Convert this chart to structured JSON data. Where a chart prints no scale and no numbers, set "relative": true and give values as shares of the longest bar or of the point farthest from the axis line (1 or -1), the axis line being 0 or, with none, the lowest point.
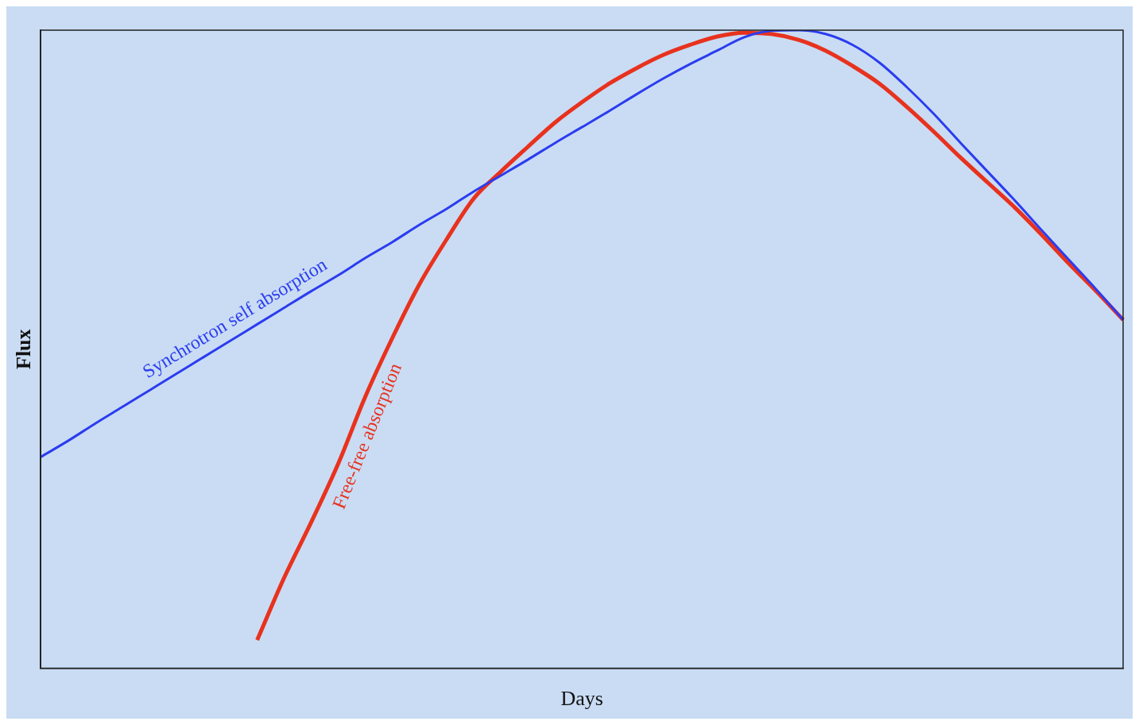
{
  "chart_data": {
    "type": "line",
    "relative": true,
    "xlabel": "Days",
    "ylabel": "Flux",
    "legend": false,
    "grid": false,
    "marker": "none",
    "line_style": "solid",
    "categories": [
      null,
      null,
      null,
      null,
      null,
      null,
      null,
      null,
      null,
      null,
      null,
      null,
      null,
      null,
      null,
      null,
      null,
      null,
      null,
      null,
      null,
      null,
      null,
      null,
      null,
      null,
      null,
      null,
      null,
      null,
      null,
      null,
      null,
      null,
      null,
      null,
      null,
      null,
      null,
      null,
      null
    ],
    "series": [
      {
        "name": "Synchrotron self absorption",
        "color": "#2b3cf0",
        "values": [
          0.331,
          0.356,
          0.383,
          0.409,
          0.435,
          0.461,
          0.487,
          0.513,
          0.539,
          0.565,
          0.591,
          0.616,
          0.643,
          0.668,
          0.695,
          0.72,
          0.747,
          0.772,
          0.797,
          0.823,
          0.848,
          0.873,
          0.899,
          0.924,
          0.947,
          0.968,
          0.989,
          0.999,
          1.0,
          0.994,
          0.977,
          0.949,
          0.911,
          0.869,
          0.823,
          0.778,
          0.733,
          0.686,
          0.64,
          0.594,
          0.546
        ]
      },
      {
        "name": "Free-free absorption",
        "color": "#e8321e",
        "values": [
          null,
          null,
          null,
          null,
          null,
          null,
          null,
          null,
          0.044,
          0.142,
          0.229,
          0.321,
          0.426,
          0.518,
          0.602,
          0.672,
          0.736,
          0.778,
          0.817,
          0.855,
          0.887,
          0.916,
          0.94,
          0.961,
          0.977,
          0.99,
          0.996,
          0.994,
          0.985,
          0.968,
          0.944,
          0.916,
          0.88,
          0.841,
          0.8,
          0.761,
          0.722,
          0.679,
          0.634,
          0.591,
          0.546
        ]
      }
    ]
  }
}
